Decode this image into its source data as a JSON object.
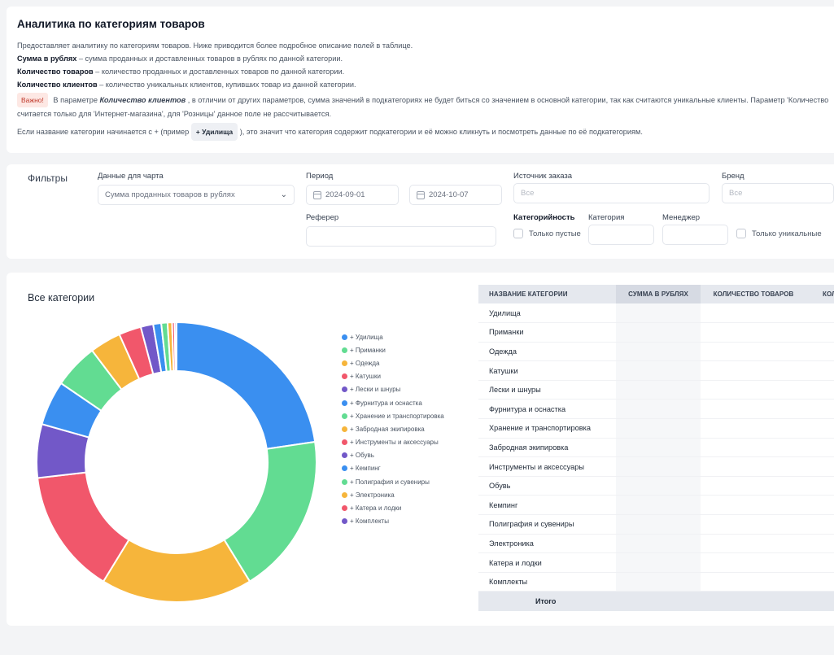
{
  "info": {
    "title": "Аналитика по категориям товаров",
    "description": "Предоставляет аналитику по категориям товаров. Ниже приводится более подробное описание полей в таблице.",
    "fields": [
      {
        "name": "Сумма в рублях",
        "text": " – сумма проданных и доставленных товаров в рублях по данной категории."
      },
      {
        "name": "Количество товаров",
        "text": " – количество проданных и доставленных товаров по данной категории."
      },
      {
        "name": "Количество клиентов",
        "text": " – количество уникальных клиентов, купивших товар из данной категории."
      }
    ],
    "important_badge": "Важно!",
    "important_prefix": " В параметре ",
    "important_param": "Количество клиентов",
    "important_text": " , в отличии от других параметров, сумма значений в подкатегориях не будет биться со значением в основной категории, так как считаются уникальные клиенты. Параметр 'Количество",
    "important_line2": "считается только для 'Интернет-магазина', для 'Розницы' данное поле не рассчитывается.",
    "hint_prefix": "Если название категории начинается с + (пример",
    "hint_example": "+ Удилища",
    "hint_suffix": "), это значит что категория содержит подкатегории и её можно кликнуть и посмотреть данные по её подкатегориям."
  },
  "filters": {
    "title": "Фильтры",
    "chart_data_label": "Данные для чарта",
    "chart_data_value": "Сумма проданных товаров в рублях",
    "period_label": "Период",
    "period_from": "2024-09-01",
    "period_to": "2024-10-07",
    "source_label": "Источник заказа",
    "source_placeholder": "Все",
    "brand_label": "Бренд",
    "brand_placeholder": "Все",
    "referrer_label": "Реферер",
    "referrer_value": "",
    "categoriness_label": "Категорийность",
    "only_empty_label": "Только пустые",
    "category_label": "Категория",
    "category_value": "",
    "manager_label": "Менеджер",
    "manager_value": "",
    "only_unique_label": "Только уникальные"
  },
  "chart": {
    "title": "Все категории",
    "colors": {
      "blue": "#3a8ff0",
      "green": "#62dc92",
      "yellow": "#f6b53b",
      "red": "#f1576b",
      "purple": "#7258c8"
    }
  },
  "chart_data": {
    "type": "pie",
    "donut": true,
    "legend_position": "right",
    "categories": [
      "+ Удилища",
      "+ Приманки",
      "+ Одежда",
      "+ Катушки",
      "+ Лески и шнуры",
      "+ Фурнитура и оснастка",
      "+ Хранение и транспортировка",
      "+ Забродная экипировка",
      "+ Инструменты и аксессуары",
      "+ Обувь",
      "+ Кемпинг",
      "+ Полиграфия и сувениры",
      "+ Электроника",
      "+ Катера и лодки",
      "+ Комплекты"
    ],
    "values": [
      22,
      18,
      17,
      14,
      6,
      5,
      5,
      3.5,
      2.5,
      1.4,
      0.9,
      0.7,
      0.5,
      0.3,
      0.2
    ],
    "colors": [
      "#3a8ff0",
      "#62dc92",
      "#f6b53b",
      "#f1576b",
      "#7258c8",
      "#3a8ff0",
      "#62dc92",
      "#f6b53b",
      "#f1576b",
      "#7258c8",
      "#3a8ff0",
      "#62dc92",
      "#f6b53b",
      "#f1576b",
      "#7258c8"
    ]
  },
  "table": {
    "headers": [
      "НАЗВАНИЕ КАТЕГОРИИ",
      "СУММА В РУБЛЯХ",
      "КОЛИЧЕСТВО ТОВАРОВ",
      "КОЛИ"
    ],
    "rows": [
      "Удилища",
      "Приманки",
      "Одежда",
      "Катушки",
      "Лески и шнуры",
      "Фурнитура и оснастка",
      "Хранение и транспортировка",
      "Забродная экипировка",
      "Инструменты и аксессуары",
      "Обувь",
      "Кемпинг",
      "Полиграфия и сувениры",
      "Электроника",
      "Катера и лодки",
      "Комплекты"
    ],
    "total_label": "Итого"
  }
}
